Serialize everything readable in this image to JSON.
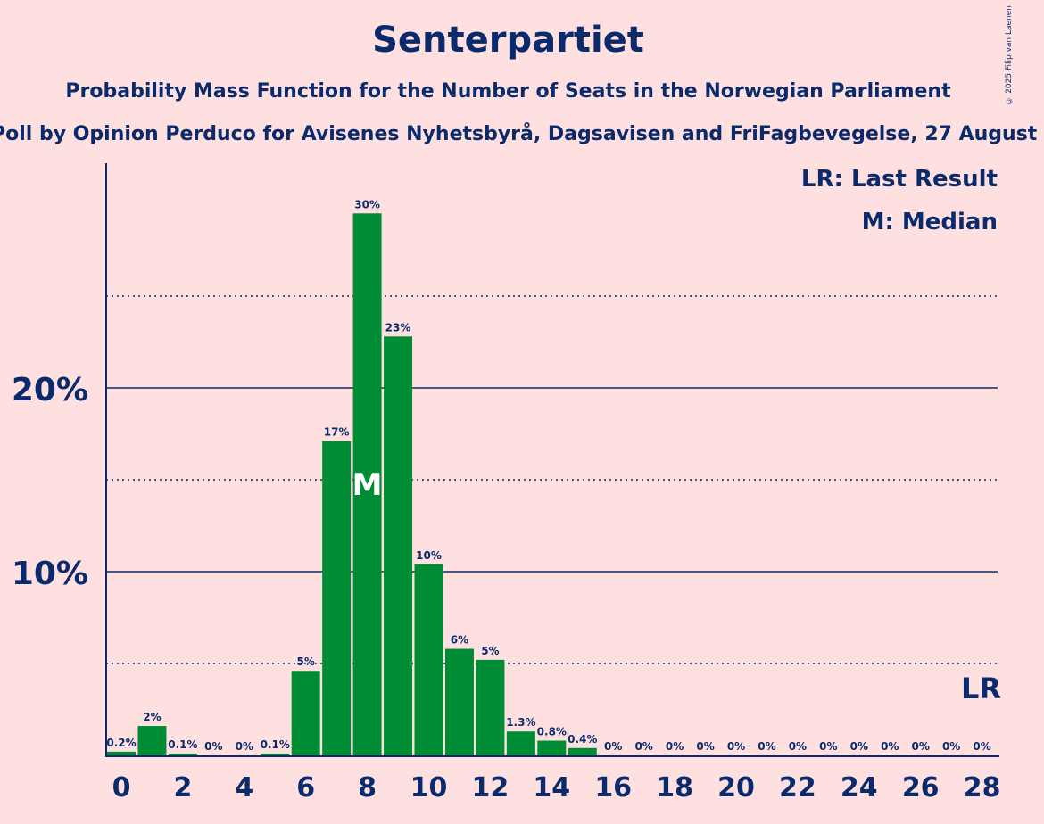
{
  "header": {
    "title": "Senterpartiet",
    "subtitle": "Probability Mass Function for the Number of Seats in the Norwegian Parliament",
    "source": "Poll by Opinion Perduco for Avisenes Nyhetsbyrå, Dagsavisen and FriFagbevegelse, 27 August",
    "copyright": "© 2025 Filip van Laenen"
  },
  "legend": {
    "last_result": "LR: Last Result",
    "median": "M: Median"
  },
  "markers": {
    "median_label": "M",
    "last_result_label": "LR"
  },
  "colors": {
    "background": "#FFE0E0",
    "bar": "#008C35",
    "text": "#0B2A6B"
  },
  "chart_data": {
    "type": "bar",
    "categories": [
      0,
      1,
      2,
      3,
      4,
      5,
      6,
      7,
      8,
      9,
      10,
      11,
      12,
      13,
      14,
      15,
      16,
      17,
      18,
      19,
      20,
      21,
      22,
      23,
      24,
      25,
      26,
      27,
      28
    ],
    "values": [
      0.2,
      1.6,
      0.1,
      0,
      0,
      0.1,
      4.6,
      17.1,
      29.5,
      22.8,
      10.4,
      5.8,
      5.2,
      1.3,
      0.8,
      0.4,
      0,
      0,
      0,
      0,
      0,
      0,
      0,
      0,
      0,
      0,
      0,
      0,
      0
    ],
    "data_labels": [
      "0.2%",
      "2%",
      "0.1%",
      "0%",
      "0%",
      "0.1%",
      "5%",
      "17%",
      "30%",
      "23%",
      "10%",
      "6%",
      "5%",
      "1.3%",
      "0.8%",
      "0.4%",
      "0%",
      "0%",
      "0%",
      "0%",
      "0%",
      "0%",
      "0%",
      "0%",
      "0%",
      "0%",
      "0%",
      "0%",
      "0%"
    ],
    "x_tick_labels": [
      "0",
      "2",
      "4",
      "6",
      "8",
      "10",
      "12",
      "14",
      "16",
      "18",
      "20",
      "22",
      "24",
      "26",
      "28"
    ],
    "y_tick_labels": [
      "10%",
      "20%"
    ],
    "y_ticks": [
      10,
      20
    ],
    "y_minor_ticks": [
      5,
      15,
      25
    ],
    "ylim": [
      0,
      32
    ],
    "median_seat": 8,
    "last_result_seat": 28,
    "grid": true,
    "legend_position": "top-right"
  }
}
